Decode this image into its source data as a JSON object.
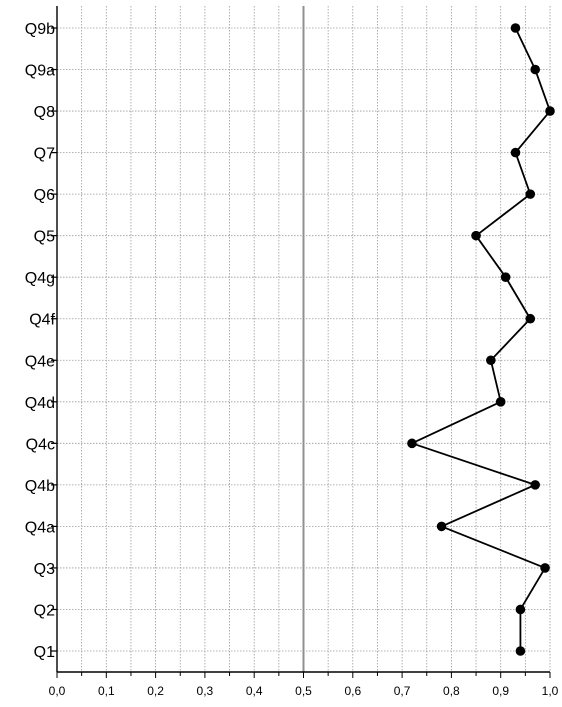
{
  "chart_data": {
    "type": "line",
    "orientation": "horizontal",
    "title": "",
    "xlabel": "",
    "ylabel": "",
    "xlim": [
      0,
      1
    ],
    "grid": true,
    "legend": "none",
    "reference_line": 0.5,
    "x_tick_labels": [
      "0,0",
      "0,1",
      "0,2",
      "0,3",
      "0,4",
      "0,5",
      "0,6",
      "0,7",
      "0,8",
      "0,9",
      "1,0"
    ],
    "categories": [
      "Q1",
      "Q2",
      "Q3",
      "Q4a",
      "Q4b",
      "Q4c",
      "Q4d",
      "Q4e",
      "Q4f",
      "Q4g",
      "Q5",
      "Q6",
      "Q7",
      "Q8",
      "Q9a",
      "Q9b"
    ],
    "series": [
      {
        "values": [
          0.94,
          0.94,
          0.99,
          0.78,
          0.97,
          0.72,
          0.9,
          0.88,
          0.96,
          0.91,
          0.85,
          0.96,
          0.93,
          1.0,
          0.97,
          0.93
        ]
      }
    ],
    "colors": {
      "line": "#000000",
      "marker": "#000000",
      "grid": "#9a9a9a",
      "reference": "#909090",
      "axis": "#000000"
    }
  }
}
